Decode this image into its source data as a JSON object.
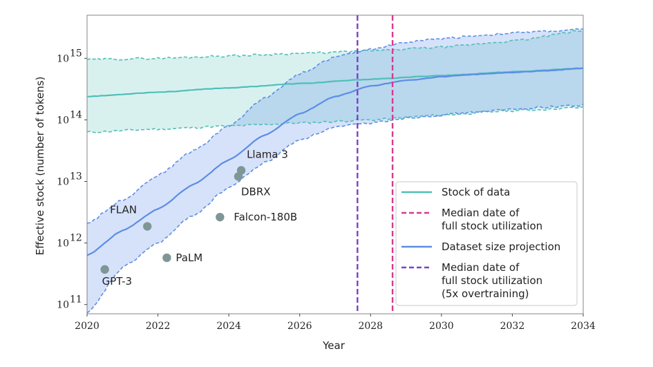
{
  "chart_data": {
    "type": "line",
    "title": "",
    "xlabel": "Year",
    "ylabel": "Effective stock (number of tokens)",
    "xlim": [
      2020,
      2034
    ],
    "ylim_log10": [
      10.85,
      15.7
    ],
    "yscale": "log",
    "x_ticks": [
      "2020",
      "2022",
      "2024",
      "2026",
      "2028",
      "2030",
      "2032",
      "2034"
    ],
    "y_ticks": [
      {
        "base": "10",
        "exp": "11",
        "log10": 11
      },
      {
        "base": "10",
        "exp": "12",
        "log10": 12
      },
      {
        "base": "10",
        "exp": "13",
        "log10": 13
      },
      {
        "base": "10",
        "exp": "14",
        "log10": 14
      },
      {
        "base": "10",
        "exp": "15",
        "log10": 15
      }
    ],
    "series": [
      {
        "name": "Stock of data",
        "color": "#4dbfb7",
        "x": [
          2020,
          2022,
          2024,
          2026,
          2028,
          2030,
          2032,
          2034
        ],
        "log10_y": [
          14.38,
          14.45,
          14.52,
          14.59,
          14.66,
          14.72,
          14.78,
          14.84
        ],
        "ci_low_log10": [
          13.8,
          13.85,
          13.9,
          13.95,
          14.0,
          14.08,
          14.15,
          14.2
        ],
        "ci_high_log10": [
          14.98,
          15.0,
          15.04,
          15.08,
          15.12,
          15.18,
          15.28,
          15.45
        ]
      },
      {
        "name": "Dataset size projection",
        "color": "#5b8de6",
        "x": [
          2020,
          2021,
          2022,
          2023,
          2024,
          2025,
          2026,
          2027,
          2028,
          2029,
          2030,
          2031,
          2032,
          2033,
          2034
        ],
        "log10_y": [
          11.8,
          12.2,
          12.55,
          12.95,
          13.35,
          13.75,
          14.1,
          14.38,
          14.55,
          14.64,
          14.7,
          14.74,
          14.77,
          14.8,
          14.84
        ],
        "ci_low_log10": [
          10.85,
          11.6,
          12.0,
          12.45,
          12.9,
          13.3,
          13.68,
          13.88,
          13.95,
          14.03,
          14.08,
          14.13,
          14.17,
          14.21,
          14.24
        ],
        "ci_high_log10": [
          12.32,
          12.7,
          13.1,
          13.5,
          13.9,
          14.35,
          14.75,
          15.02,
          15.15,
          15.26,
          15.32,
          15.37,
          15.41,
          15.44,
          15.47
        ]
      }
    ],
    "vlines": [
      {
        "name": "Median date of full stock utilization",
        "x": 2028.62,
        "color": "#d63a8e"
      },
      {
        "name": "Median date of full stock utilization (5x overtraining)",
        "x": 2027.63,
        "color": "#7a40c6"
      }
    ],
    "points": [
      {
        "label": "GPT-3",
        "x": 2020.5,
        "log10_y": 11.57
      },
      {
        "label": "FLAN",
        "x": 2021.7,
        "log10_y": 12.27
      },
      {
        "label": "PaLM",
        "x": 2022.25,
        "log10_y": 11.76
      },
      {
        "label": "Falcon-180B",
        "x": 2023.75,
        "log10_y": 12.42
      },
      {
        "label": "DBRX",
        "x": 2024.27,
        "log10_y": 13.08
      },
      {
        "label": "Llama 3",
        "x": 2024.35,
        "log10_y": 13.18
      }
    ],
    "point_color": "#7f9696",
    "legend": {
      "placement": "lower-right",
      "entries": [
        {
          "lines": [
            "Stock of data"
          ],
          "color": "#4dbfb7",
          "style": "solid"
        },
        {
          "lines": [
            "Median date of",
            "full stock utilization"
          ],
          "color": "#d63a8e",
          "style": "dashed"
        },
        {
          "lines": [
            "Dataset size projection"
          ],
          "color": "#5b8de6",
          "style": "solid"
        },
        {
          "lines": [
            "Median date of",
            "full stock utilization",
            "(5x overtraining)"
          ],
          "color": "#7a40c6",
          "style": "dashed"
        }
      ]
    }
  }
}
